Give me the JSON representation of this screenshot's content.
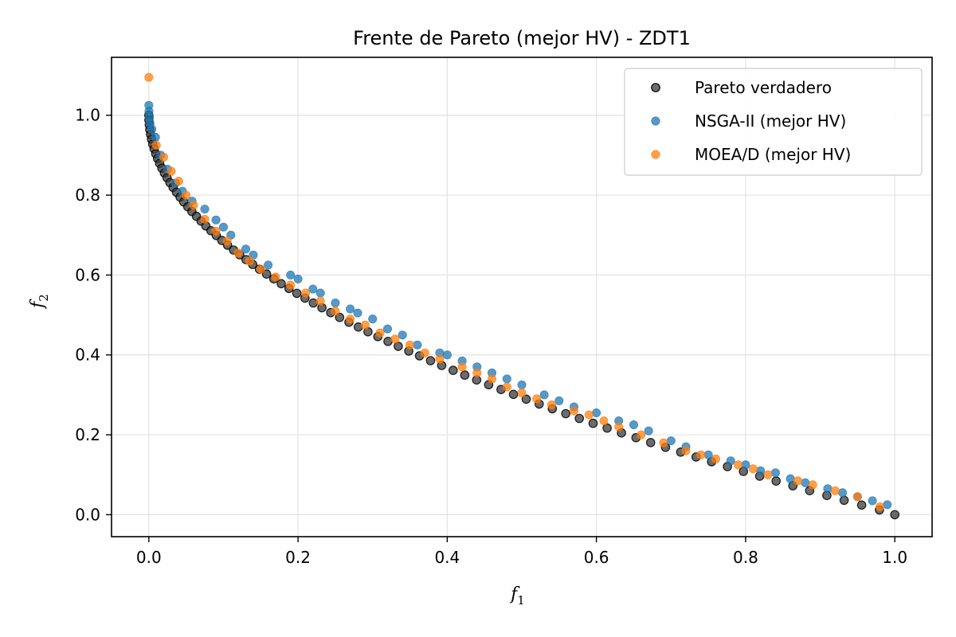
{
  "chart_data": {
    "type": "scatter",
    "title": "Frente de Pareto (mejor HV) - ZDT1",
    "xlabel": "f",
    "xlabel_sub": "1",
    "ylabel": "f",
    "ylabel_sub": "2",
    "xlim": [
      -0.05,
      1.05
    ],
    "ylim": [
      -0.055,
      1.145
    ],
    "xticks": [
      0.0,
      0.2,
      0.4,
      0.6,
      0.8,
      1.0
    ],
    "yticks": [
      0.0,
      0.2,
      0.4,
      0.6,
      0.8,
      1.0
    ],
    "xtick_labels": [
      "0.0",
      "0.2",
      "0.4",
      "0.6",
      "0.8",
      "1.0"
    ],
    "ytick_labels": [
      "0.0",
      "0.2",
      "0.4",
      "0.6",
      "0.8",
      "1.0"
    ],
    "grid": true,
    "legend_position": "top-right",
    "series": [
      {
        "name": "Pareto verdadero",
        "color": "#3b3b3b",
        "edge": "#000000",
        "x": [
          0.0,
          0.0001,
          0.0006,
          0.0013,
          0.0023,
          0.0036,
          0.0052,
          0.0071,
          0.0093,
          0.0117,
          0.0145,
          0.0175,
          0.0208,
          0.0244,
          0.0283,
          0.0325,
          0.037,
          0.0418,
          0.0468,
          0.0522,
          0.0578,
          0.0638,
          0.07,
          0.0765,
          0.0833,
          0.0904,
          0.0978,
          0.1055,
          0.1135,
          0.1218,
          0.1303,
          0.1392,
          0.1483,
          0.1578,
          0.1675,
          0.1775,
          0.1878,
          0.1984,
          0.2093,
          0.2205,
          0.232,
          0.2438,
          0.2558,
          0.2682,
          0.2809,
          0.2938,
          0.307,
          0.3206,
          0.3344,
          0.3485,
          0.3629,
          0.3776,
          0.3926,
          0.4079,
          0.4235,
          0.4394,
          0.4556,
          0.4721,
          0.4888,
          0.5059,
          0.5233,
          0.5409,
          0.5589,
          0.5771,
          0.5956,
          0.6144,
          0.6336,
          0.653,
          0.6727,
          0.6927,
          0.713,
          0.7336,
          0.7544,
          0.7756,
          0.7971,
          0.8189,
          0.8409,
          0.8633,
          0.8859,
          0.9089,
          0.9321,
          0.9556,
          0.9794,
          1.0
        ],
        "y": [
          1.0,
          0.9879,
          0.9759,
          0.9638,
          0.9518,
          0.9398,
          0.9277,
          0.9157,
          0.9036,
          0.8916,
          0.8795,
          0.8675,
          0.8554,
          0.8434,
          0.8313,
          0.8193,
          0.8072,
          0.7952,
          0.7831,
          0.7711,
          0.759,
          0.747,
          0.7349,
          0.7229,
          0.7108,
          0.6988,
          0.6867,
          0.6747,
          0.6627,
          0.6506,
          0.6386,
          0.6265,
          0.6145,
          0.6024,
          0.5904,
          0.5783,
          0.5663,
          0.5542,
          0.5422,
          0.5301,
          0.5181,
          0.506,
          0.494,
          0.4819,
          0.4699,
          0.4578,
          0.4458,
          0.4337,
          0.4217,
          0.4096,
          0.3976,
          0.3855,
          0.3735,
          0.3614,
          0.3494,
          0.3373,
          0.3253,
          0.3133,
          0.3012,
          0.2892,
          0.2771,
          0.2651,
          0.253,
          0.241,
          0.2289,
          0.2169,
          0.2048,
          0.1928,
          0.1807,
          0.1687,
          0.1566,
          0.1446,
          0.1325,
          0.1205,
          0.1084,
          0.0964,
          0.0843,
          0.0723,
          0.0602,
          0.0482,
          0.0361,
          0.0241,
          0.012,
          0.0
        ]
      },
      {
        "name": "NSGA-II (mejor HV)",
        "color": "#1f77b4",
        "x": [
          0.0,
          0.0002,
          0.0008,
          0.0016,
          0.004,
          0.009,
          0.016,
          0.025,
          0.036,
          0.045,
          0.058,
          0.075,
          0.09,
          0.1,
          0.11,
          0.13,
          0.14,
          0.16,
          0.19,
          0.2,
          0.22,
          0.23,
          0.25,
          0.27,
          0.28,
          0.3,
          0.32,
          0.34,
          0.36,
          0.39,
          0.4,
          0.42,
          0.44,
          0.46,
          0.48,
          0.5,
          0.53,
          0.55,
          0.57,
          0.6,
          0.63,
          0.65,
          0.67,
          0.7,
          0.72,
          0.75,
          0.78,
          0.8,
          0.82,
          0.84,
          0.86,
          0.88,
          0.91,
          0.93,
          0.95,
          0.97,
          0.99
        ],
        "y": [
          1.025,
          1.01,
          0.995,
          0.98,
          0.965,
          0.945,
          0.9,
          0.865,
          0.83,
          0.81,
          0.785,
          0.765,
          0.738,
          0.72,
          0.7,
          0.665,
          0.65,
          0.625,
          0.6,
          0.59,
          0.565,
          0.555,
          0.53,
          0.515,
          0.505,
          0.49,
          0.465,
          0.45,
          0.425,
          0.405,
          0.4,
          0.385,
          0.37,
          0.355,
          0.34,
          0.325,
          0.3,
          0.285,
          0.27,
          0.255,
          0.235,
          0.225,
          0.21,
          0.185,
          0.17,
          0.15,
          0.135,
          0.125,
          0.11,
          0.105,
          0.09,
          0.08,
          0.065,
          0.055,
          0.045,
          0.035,
          0.025
        ]
      },
      {
        "name": "MOEA/D (mejor HV)",
        "color": "#ff7f0e",
        "x": [
          0.0,
          0.01,
          0.02,
          0.03,
          0.04,
          0.05,
          0.06,
          0.075,
          0.09,
          0.105,
          0.12,
          0.135,
          0.15,
          0.17,
          0.19,
          0.21,
          0.23,
          0.25,
          0.27,
          0.29,
          0.31,
          0.33,
          0.35,
          0.37,
          0.39,
          0.42,
          0.44,
          0.46,
          0.48,
          0.5,
          0.52,
          0.54,
          0.57,
          0.59,
          0.61,
          0.63,
          0.66,
          0.69,
          0.72,
          0.74,
          0.76,
          0.79,
          0.81,
          0.83,
          0.87,
          0.89,
          0.92,
          0.95,
          0.98
        ],
        "y": [
          1.095,
          0.925,
          0.895,
          0.86,
          0.835,
          0.8,
          0.775,
          0.74,
          0.71,
          0.685,
          0.655,
          0.635,
          0.615,
          0.595,
          0.575,
          0.555,
          0.535,
          0.51,
          0.49,
          0.475,
          0.455,
          0.44,
          0.425,
          0.405,
          0.39,
          0.37,
          0.355,
          0.34,
          0.32,
          0.305,
          0.29,
          0.275,
          0.26,
          0.25,
          0.235,
          0.22,
          0.2,
          0.18,
          0.16,
          0.15,
          0.14,
          0.125,
          0.115,
          0.1,
          0.085,
          0.075,
          0.06,
          0.045,
          0.02
        ]
      }
    ]
  }
}
